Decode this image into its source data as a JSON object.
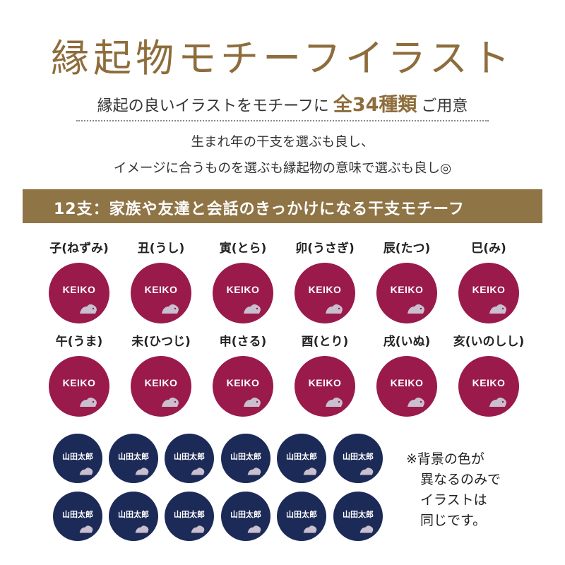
{
  "title": "縁起物モチーフイラスト",
  "subtitle": {
    "before": "縁起の良いイラストをモチーフに",
    "accent": "全34種類",
    "after": "ご用意"
  },
  "description": [
    "生まれ年の干支を選ぶも良し、",
    "イメージに合うものを選ぶも縁起物の意味で選ぶも良し◎"
  ],
  "section_heading": "12支：家族や友達と会話のきっかけになる干支モチーフ",
  "zodiac": [
    {
      "label": "子(ねずみ)",
      "icon": "mouse-icon"
    },
    {
      "label": "丑(うし)",
      "icon": "ox-icon"
    },
    {
      "label": "寅(とら)",
      "icon": "tiger-icon"
    },
    {
      "label": "卯(うさぎ)",
      "icon": "rabbit-icon"
    },
    {
      "label": "辰(たつ)",
      "icon": "dragon-icon"
    },
    {
      "label": "巳(み)",
      "icon": "snake-icon"
    },
    {
      "label": "午(うま)",
      "icon": "horse-icon"
    },
    {
      "label": "未(ひつじ)",
      "icon": "sheep-icon"
    },
    {
      "label": "申(さる)",
      "icon": "monkey-icon"
    },
    {
      "label": "酉(とり)",
      "icon": "rooster-icon"
    },
    {
      "label": "戌(いぬ)",
      "icon": "dog-icon"
    },
    {
      "label": "亥(いのしし)",
      "icon": "boar-icon"
    }
  ],
  "sample_name_latin": "KEIKO",
  "sample_name_kanji": "山田太郎",
  "note": [
    "※背景の色が",
    "異なるのみで",
    "イラストは",
    "同じです。"
  ],
  "colors": {
    "accent_brown": "#8e6d3c",
    "band": "#8f7446",
    "crimson": "#9a1a4b",
    "navy": "#1c2a57",
    "animal": "#c9bfcf"
  }
}
